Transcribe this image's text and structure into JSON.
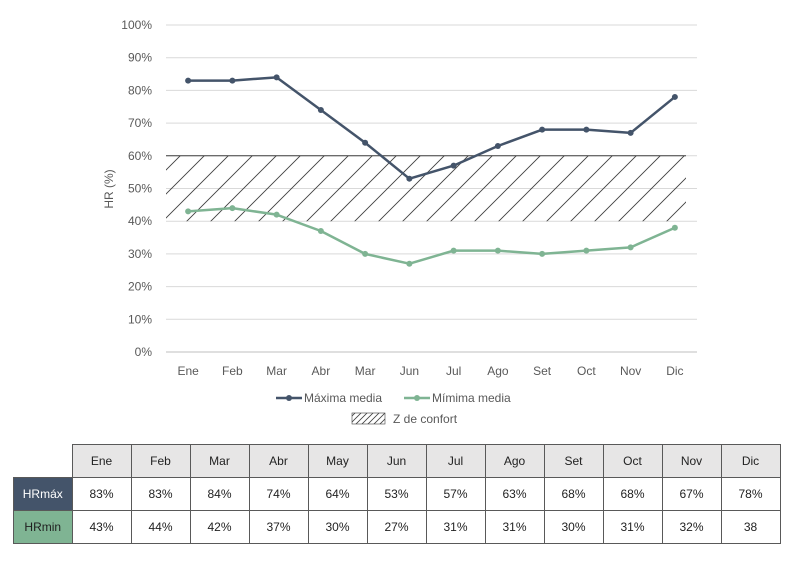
{
  "chart_data": {
    "type": "line",
    "ylabel": "HR (%)",
    "ylim": [
      0,
      100
    ],
    "yticks": [
      0,
      10,
      20,
      30,
      40,
      50,
      60,
      70,
      80,
      90,
      100
    ],
    "ytick_labels": [
      "0%",
      "10%",
      "20%",
      "30%",
      "40%",
      "50%",
      "60%",
      "70%",
      "80%",
      "90%",
      "100%"
    ],
    "categories": [
      "Ene",
      "Feb",
      "Mar",
      "Abr",
      "Mar",
      "Jun",
      "Jul",
      "Ago",
      "Set",
      "Oct",
      "Nov",
      "Dic"
    ],
    "series": [
      {
        "name": "Máxima media",
        "color": "#44546a",
        "values": [
          83,
          83,
          84,
          74,
          64,
          53,
          57,
          63,
          68,
          68,
          67,
          78
        ]
      },
      {
        "name": "Mímima media",
        "color": "#7fb493",
        "values": [
          43,
          44,
          42,
          37,
          30,
          27,
          31,
          31,
          30,
          31,
          32,
          38
        ]
      }
    ],
    "comfort_zone": {
      "name": "Z de confort",
      "range": [
        40,
        60
      ]
    },
    "grid": true,
    "legend": "bottom"
  },
  "table": {
    "months": [
      "Ene",
      "Feb",
      "Mar",
      "Abr",
      "May",
      "Jun",
      "Jul",
      "Ago",
      "Set",
      "Oct",
      "Nov",
      "Dic"
    ],
    "rows": [
      {
        "label": "HRmáx",
        "values": [
          "83%",
          "83%",
          "84%",
          "74%",
          "64%",
          "53%",
          "57%",
          "63%",
          "68%",
          "68%",
          "67%",
          "78%"
        ]
      },
      {
        "label": "HRmin",
        "values": [
          "43%",
          "44%",
          "42%",
          "37%",
          "30%",
          "27%",
          "31%",
          "31%",
          "30%",
          "31%",
          "32%",
          "38"
        ]
      }
    ]
  }
}
